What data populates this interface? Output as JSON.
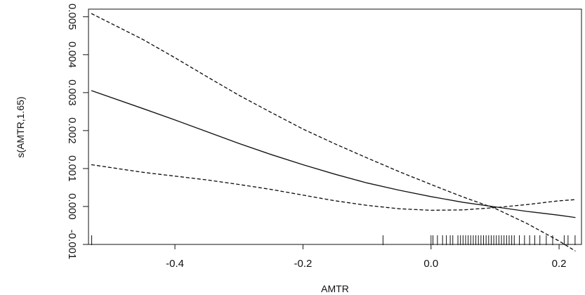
{
  "chart_data": {
    "type": "line",
    "title": "",
    "xlabel": "AMTR",
    "ylabel": "s(AMTR,1.65)",
    "xlim": [
      -0.535,
      0.235
    ],
    "ylim": [
      -0.001,
      0.0052
    ],
    "x_ticks": [
      {
        "value": -0.4,
        "label": "-0.4"
      },
      {
        "value": -0.2,
        "label": "-0.2"
      },
      {
        "value": 0.0,
        "label": "0.0"
      },
      {
        "value": 0.2,
        "label": "0.2"
      }
    ],
    "y_ticks": [
      {
        "value": -0.001,
        "label": "-0.001"
      },
      {
        "value": 0.0,
        "label": "0.000"
      },
      {
        "value": 0.001,
        "label": "0.001"
      },
      {
        "value": 0.002,
        "label": "0.002"
      },
      {
        "value": 0.003,
        "label": "0.003"
      },
      {
        "value": 0.004,
        "label": "0.004"
      },
      {
        "value": 0.005,
        "label": "0.005"
      }
    ],
    "grid": false,
    "legend": "none",
    "colors": {
      "line": "#111111",
      "axis": "#111111",
      "background": "#ffffff"
    },
    "series": [
      {
        "style": "solid",
        "x": [
          -0.53,
          -0.45,
          -0.4,
          -0.35,
          -0.3,
          -0.25,
          -0.2,
          -0.15,
          -0.1,
          -0.05,
          0.0,
          0.05,
          0.1,
          0.15,
          0.2,
          0.225
        ],
        "y": [
          0.00305,
          0.00258,
          0.00228,
          0.00197,
          0.00166,
          0.00137,
          0.0011,
          0.00085,
          0.00062,
          0.00043,
          0.00026,
          0.00011,
          -1e-05,
          -0.00013,
          -0.00023,
          -0.00029
        ]
      },
      {
        "style": "dashed",
        "x": [
          -0.53,
          -0.45,
          -0.4,
          -0.35,
          -0.3,
          -0.25,
          -0.2,
          -0.15,
          -0.1,
          -0.05,
          0.0,
          0.05,
          0.1,
          0.15,
          0.2,
          0.225
        ],
        "y": [
          0.00508,
          0.0044,
          0.00392,
          0.00342,
          0.00293,
          0.00248,
          0.00204,
          0.00165,
          0.00128,
          0.00092,
          0.00058,
          0.00025,
          -5e-05,
          -0.00045,
          -0.00091,
          -0.00117
        ]
      },
      {
        "style": "dashed",
        "x": [
          -0.53,
          -0.45,
          -0.4,
          -0.35,
          -0.3,
          -0.25,
          -0.2,
          -0.15,
          -0.1,
          -0.05,
          0.0,
          0.05,
          0.1,
          0.15,
          0.2,
          0.225
        ],
        "y": [
          0.0011,
          0.0009,
          0.0008,
          0.0007,
          0.00058,
          0.00045,
          0.0003,
          0.00015,
          3e-05,
          -6e-05,
          -0.0001,
          -9e-05,
          -3e-05,
          5e-05,
          0.00015,
          0.00018
        ]
      }
    ],
    "rug_x": [
      -0.53,
      -0.075,
      0.0,
      0.003,
      0.01,
      0.018,
      0.024,
      0.03,
      0.034,
      0.042,
      0.046,
      0.05,
      0.054,
      0.058,
      0.062,
      0.066,
      0.07,
      0.074,
      0.078,
      0.082,
      0.086,
      0.09,
      0.094,
      0.098,
      0.102,
      0.106,
      0.11,
      0.114,
      0.118,
      0.122,
      0.126,
      0.13,
      0.138,
      0.146,
      0.154,
      0.162,
      0.17,
      0.18,
      0.19,
      0.208,
      0.214,
      0.225
    ]
  }
}
